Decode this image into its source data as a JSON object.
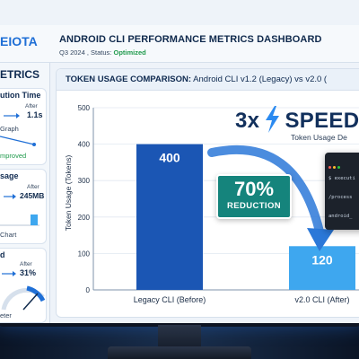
{
  "brand": {
    "name": "EIOTA"
  },
  "header": {
    "title": "ANDROID CLI PERFORMANCE METRICS DASHBOARD",
    "period": "Q3 2024 ,",
    "status_label": "Status:",
    "status_value": "Optimized"
  },
  "sidebar": {
    "heading": "ETRICS",
    "cards": [
      {
        "title": "ution Time",
        "after_label": "After",
        "after_value": "1.1s",
        "note": "Graph",
        "footer": "mproved"
      },
      {
        "title": "sage",
        "after_label": "After",
        "after_value": "245MB",
        "footer": "Chart"
      },
      {
        "title": "d",
        "after_label": "After",
        "after_value": "31%",
        "footer": "eter"
      }
    ]
  },
  "panel": {
    "title_bold": "TOKEN USAGE COMPARISON:",
    "title_rest": "Android CLI v1.2 (Legacy) vs v2.0 ("
  },
  "chart_data": {
    "type": "bar",
    "ylabel": "Token Usage (Tokens)",
    "categories": [
      "Legacy CLI (Before)",
      "v2.0 CLI (After)"
    ],
    "values": [
      400,
      120
    ],
    "data_labels": [
      "400",
      "120"
    ],
    "ylim": [
      0,
      500
    ],
    "yticks": [
      0,
      100,
      200,
      300,
      400,
      500
    ],
    "grid": true,
    "colors": [
      "#1b56b4",
      "#3ea7ef"
    ]
  },
  "callouts": {
    "reduction_value": "70%",
    "reduction_label": "REDUCTION",
    "speed_prefix": "3x",
    "speed_word": "SPEED",
    "speed_sub": "Token Usage De"
  },
  "terminal": {
    "lines": [
      "$ executi",
      "/process",
      "android_"
    ]
  },
  "colors": {
    "accent": "#1f6fd6",
    "navy": "#0f2a50",
    "status_green": "#1f9a4c",
    "reduction_teal": "#15847c"
  }
}
